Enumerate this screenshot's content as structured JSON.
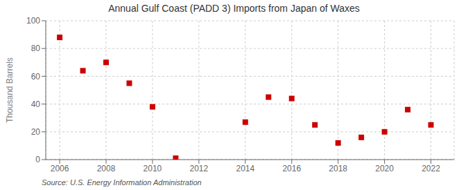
{
  "chart_data": {
    "type": "scatter",
    "title": "Annual Gulf Coast (PADD 3) Imports from Japan of Waxes",
    "ylabel": "Thousand Barrels",
    "annotations": [
      "Source: U.S. Energy Information Administration"
    ],
    "x": [
      2006,
      2007,
      2008,
      2009,
      2010,
      2011,
      2014,
      2015,
      2016,
      2017,
      2018,
      2019,
      2020,
      2021,
      2022
    ],
    "values": [
      88,
      64,
      70,
      55,
      38,
      1,
      27,
      45,
      44,
      25,
      12,
      16,
      20,
      36,
      25
    ],
    "color": "#cc0000",
    "marker": "square",
    "xlim": [
      2005.4,
      2023.0
    ],
    "ylim": [
      0,
      100
    ],
    "xticks": [
      2006,
      2008,
      2010,
      2012,
      2014,
      2016,
      2018,
      2020,
      2022
    ],
    "yticks": [
      0,
      20,
      40,
      60,
      80,
      100
    ],
    "grid": true
  }
}
